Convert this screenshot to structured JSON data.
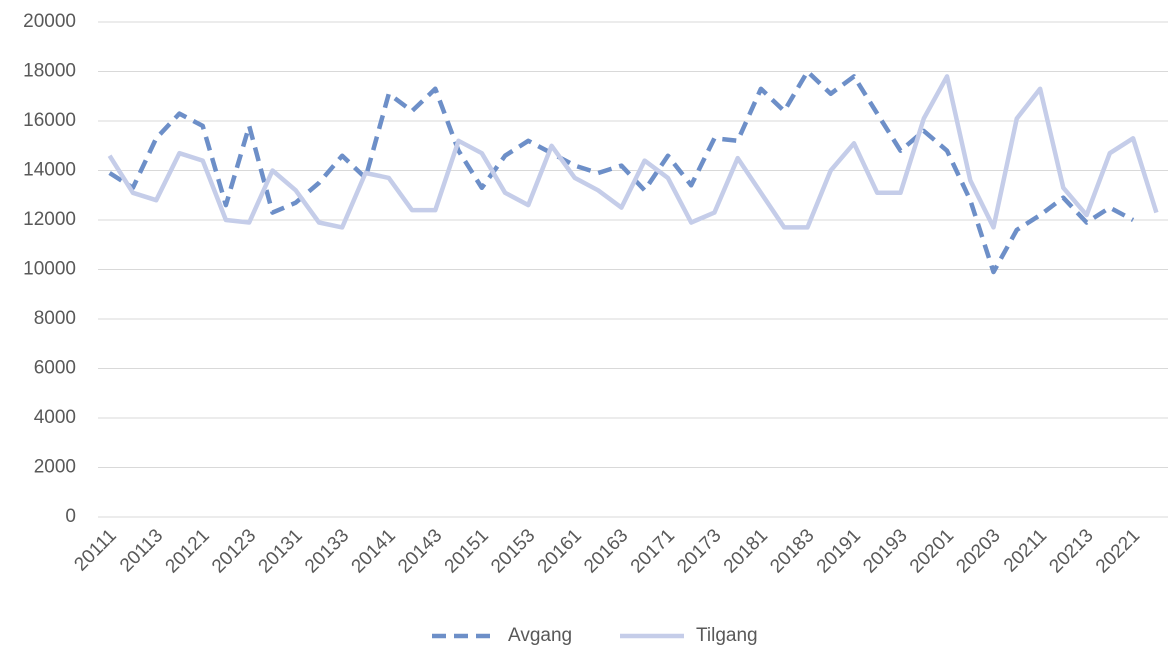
{
  "chart_data": {
    "type": "line",
    "categories": [
      "20111",
      null,
      "20113",
      null,
      "20121",
      null,
      "20123",
      null,
      "20131",
      null,
      "20133",
      null,
      "20141",
      null,
      "20143",
      null,
      "20151",
      null,
      "20153",
      null,
      "20161",
      null,
      "20163",
      null,
      "20171",
      null,
      "20173",
      null,
      "20181",
      null,
      "20183",
      null,
      "20191",
      null,
      "20193",
      null,
      "20201",
      null,
      "20203",
      null,
      "20211",
      null,
      "20213",
      null,
      "20221",
      null
    ],
    "series": [
      {
        "name": "Avgang",
        "color": "#6d8fc8",
        "dashed": true,
        "values": [
          13900,
          13300,
          15300,
          16300,
          15800,
          12600,
          15800,
          12300,
          12700,
          13500,
          14600,
          13700,
          17100,
          16400,
          17300,
          14800,
          13300,
          14600,
          15200,
          14700,
          14200,
          13900,
          14200,
          13200,
          14600,
          13400,
          15300,
          15200,
          17300,
          16400,
          18000,
          17100,
          17800,
          16300,
          14800,
          15600,
          14800,
          12800,
          9900,
          11600,
          12200,
          12900,
          11900,
          12500,
          12000,
          null
        ]
      },
      {
        "name": "Tilgang",
        "color": "#c5cde9",
        "dashed": false,
        "values": [
          14600,
          13100,
          12800,
          14700,
          14400,
          12000,
          11900,
          14000,
          13200,
          11900,
          11700,
          13900,
          13700,
          12400,
          12400,
          15200,
          14700,
          13100,
          12600,
          15000,
          13700,
          13200,
          12500,
          14400,
          13700,
          11900,
          12300,
          14500,
          13100,
          11700,
          11700,
          14000,
          15100,
          13100,
          13100,
          16100,
          17800,
          13600,
          11700,
          16100,
          17300,
          13300,
          12200,
          14700,
          15300,
          12300
        ]
      }
    ],
    "ylim": [
      0,
      20000
    ],
    "yticks": [
      0,
      2000,
      4000,
      6000,
      8000,
      10000,
      12000,
      14000,
      16000,
      18000,
      20000
    ],
    "grid": true,
    "legend": "bottom"
  }
}
